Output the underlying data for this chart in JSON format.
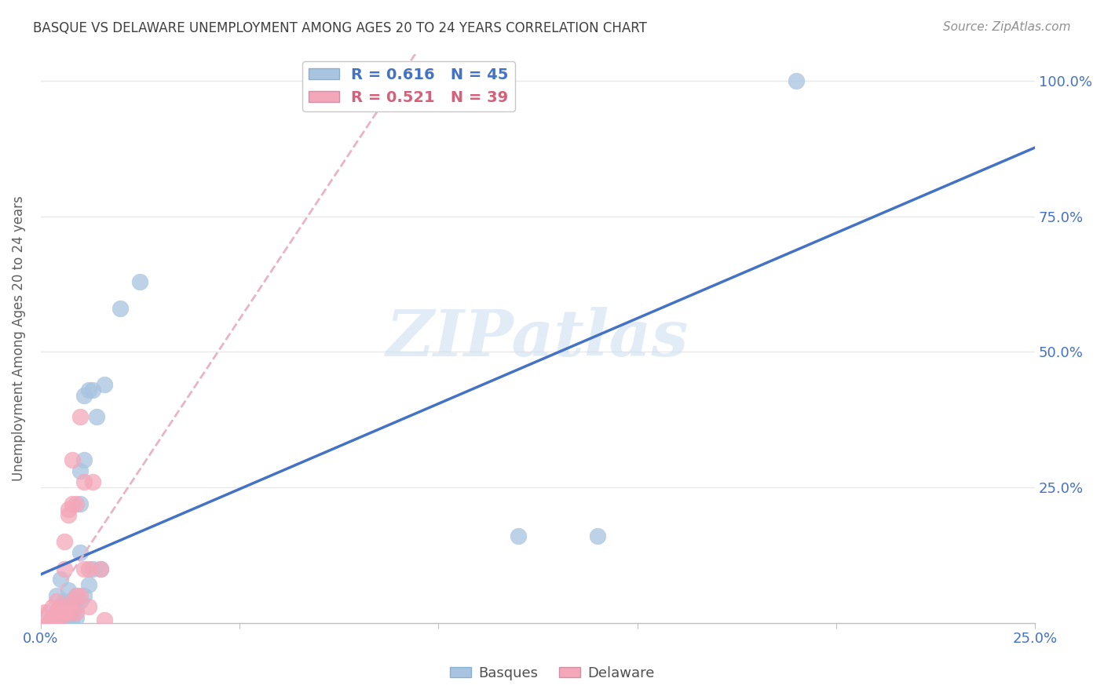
{
  "title": "BASQUE VS DELAWARE UNEMPLOYMENT AMONG AGES 20 TO 24 YEARS CORRELATION CHART",
  "source": "Source: ZipAtlas.com",
  "ylabel": "Unemployment Among Ages 20 to 24 years",
  "xlim": [
    0.0,
    0.25
  ],
  "ylim": [
    0.0,
    1.05
  ],
  "xtick_pos": [
    0.0,
    0.05,
    0.1,
    0.15,
    0.2,
    0.25
  ],
  "xtick_labels": [
    "0.0%",
    "",
    "",
    "",
    "",
    "25.0%"
  ],
  "ytick_pos": [
    0.25,
    0.5,
    0.75,
    1.0
  ],
  "ytick_labels": [
    "25.0%",
    "50.0%",
    "75.0%",
    "100.0%"
  ],
  "basque_color": "#a8c4e0",
  "delaware_color": "#f4a7b9",
  "basque_line_color": "#4472c4",
  "delaware_line_color": "#e8b4c8",
  "legend_text_basque": "R = 0.616   N = 45",
  "legend_text_delaware": "R = 0.521   N = 39",
  "legend_color_basque": "#4472c4",
  "legend_color_delaware": "#d4607a",
  "title_color": "#404040",
  "source_color": "#909090",
  "grid_color": "#e8e8e8",
  "tick_color": "#4472c4",
  "watermark": "ZIPatlas",
  "watermark_color": "#d0e0f0",
  "basque_scatter": [
    [
      0.001,
      0.005
    ],
    [
      0.001,
      0.01
    ],
    [
      0.002,
      0.005
    ],
    [
      0.002,
      0.01
    ],
    [
      0.002,
      0.015
    ],
    [
      0.003,
      0.005
    ],
    [
      0.003,
      0.01
    ],
    [
      0.003,
      0.02
    ],
    [
      0.004,
      0.01
    ],
    [
      0.004,
      0.02
    ],
    [
      0.004,
      0.05
    ],
    [
      0.005,
      0.01
    ],
    [
      0.005,
      0.03
    ],
    [
      0.005,
      0.08
    ],
    [
      0.006,
      0.01
    ],
    [
      0.006,
      0.02
    ],
    [
      0.006,
      0.04
    ],
    [
      0.007,
      0.01
    ],
    [
      0.007,
      0.03
    ],
    [
      0.007,
      0.06
    ],
    [
      0.008,
      0.01
    ],
    [
      0.008,
      0.02
    ],
    [
      0.008,
      0.04
    ],
    [
      0.009,
      0.01
    ],
    [
      0.009,
      0.03
    ],
    [
      0.009,
      0.05
    ],
    [
      0.01,
      0.04
    ],
    [
      0.01,
      0.13
    ],
    [
      0.01,
      0.22
    ],
    [
      0.01,
      0.28
    ],
    [
      0.011,
      0.05
    ],
    [
      0.011,
      0.3
    ],
    [
      0.011,
      0.42
    ],
    [
      0.012,
      0.07
    ],
    [
      0.012,
      0.43
    ],
    [
      0.013,
      0.1
    ],
    [
      0.013,
      0.43
    ],
    [
      0.014,
      0.38
    ],
    [
      0.015,
      0.1
    ],
    [
      0.016,
      0.44
    ],
    [
      0.02,
      0.58
    ],
    [
      0.025,
      0.63
    ],
    [
      0.12,
      0.16
    ],
    [
      0.14,
      0.16
    ],
    [
      0.19,
      1.0
    ]
  ],
  "delaware_scatter": [
    [
      0.001,
      0.005
    ],
    [
      0.001,
      0.01
    ],
    [
      0.001,
      0.02
    ],
    [
      0.002,
      0.005
    ],
    [
      0.002,
      0.01
    ],
    [
      0.002,
      0.015
    ],
    [
      0.002,
      0.02
    ],
    [
      0.003,
      0.005
    ],
    [
      0.003,
      0.02
    ],
    [
      0.003,
      0.03
    ],
    [
      0.004,
      0.01
    ],
    [
      0.004,
      0.02
    ],
    [
      0.004,
      0.04
    ],
    [
      0.005,
      0.01
    ],
    [
      0.005,
      0.02
    ],
    [
      0.005,
      0.03
    ],
    [
      0.006,
      0.02
    ],
    [
      0.006,
      0.1
    ],
    [
      0.006,
      0.15
    ],
    [
      0.007,
      0.02
    ],
    [
      0.007,
      0.03
    ],
    [
      0.007,
      0.2
    ],
    [
      0.007,
      0.21
    ],
    [
      0.008,
      0.02
    ],
    [
      0.008,
      0.04
    ],
    [
      0.008,
      0.22
    ],
    [
      0.008,
      0.3
    ],
    [
      0.009,
      0.02
    ],
    [
      0.009,
      0.05
    ],
    [
      0.009,
      0.22
    ],
    [
      0.01,
      0.05
    ],
    [
      0.01,
      0.38
    ],
    [
      0.011,
      0.1
    ],
    [
      0.011,
      0.26
    ],
    [
      0.012,
      0.03
    ],
    [
      0.012,
      0.1
    ],
    [
      0.013,
      0.26
    ],
    [
      0.015,
      0.1
    ],
    [
      0.016,
      0.005
    ]
  ]
}
